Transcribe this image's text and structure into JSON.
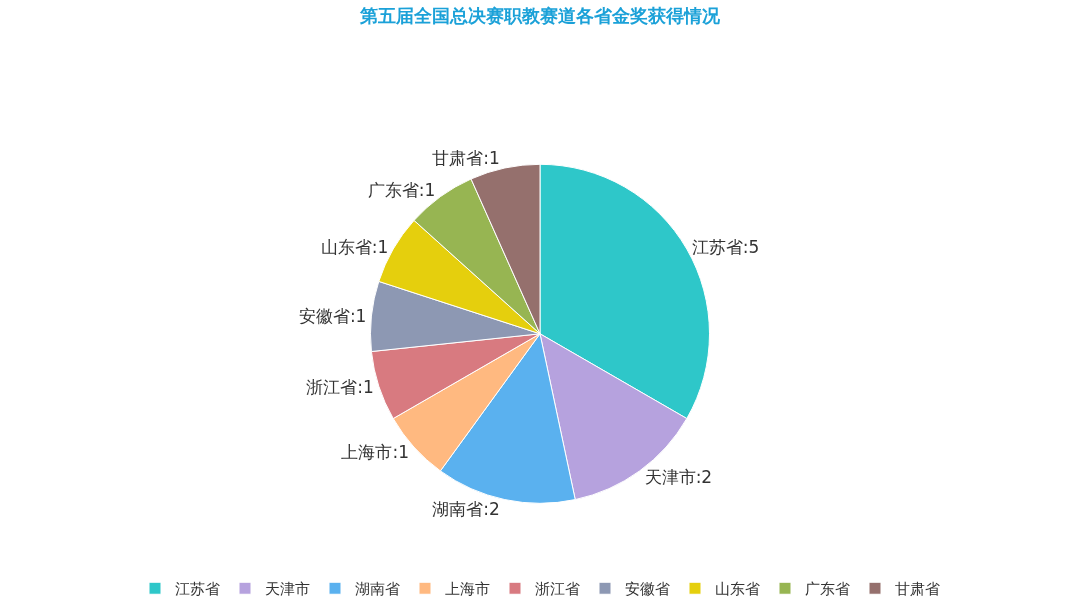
{
  "chart_data": {
    "type": "pie",
    "title": "第五届全国总决赛职教赛道各省金奖获得情况",
    "categories": [
      "江苏省",
      "天津市",
      "湖南省",
      "上海市",
      "浙江省",
      "安徽省",
      "山东省",
      "广东省",
      "甘肃省"
    ],
    "values": [
      5,
      2,
      2,
      1,
      1,
      1,
      1,
      1,
      1
    ],
    "colors": [
      "#2ec7c9",
      "#b6a2de",
      "#5ab1ef",
      "#ffb980",
      "#d87a80",
      "#8d98b3",
      "#e5cf0d",
      "#97b552",
      "#95706d"
    ],
    "value_labels": [
      "江苏省:5",
      "天津市:2",
      "湖南省:2",
      "上海市:1",
      "浙江省:1",
      "安徽省:1",
      "山东省:1",
      "广东省:1",
      "甘肃省:1"
    ],
    "legend": "bottom"
  }
}
